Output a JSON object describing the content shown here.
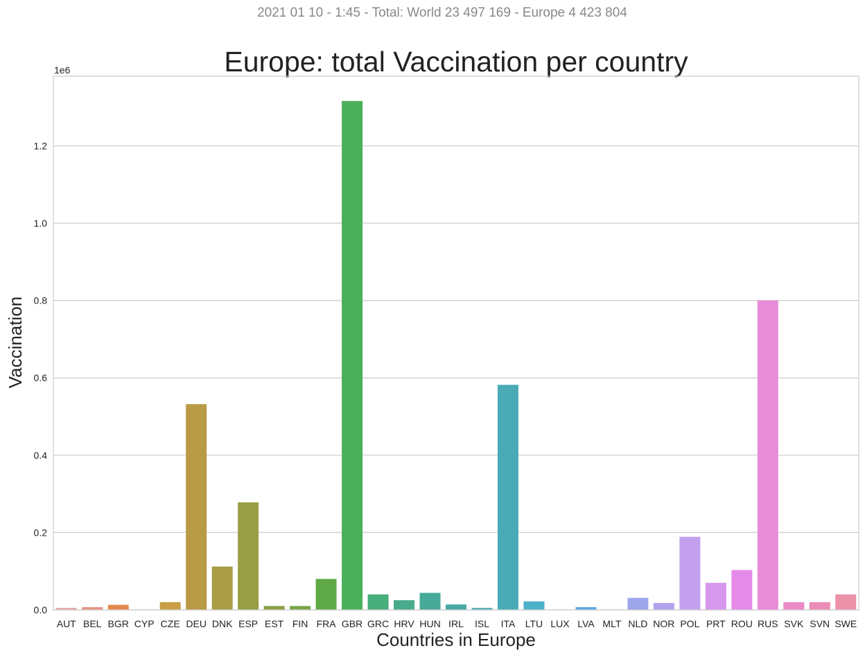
{
  "suptitle": "2021 01 10 - 1:45 - Total: World 23 497 169 - Europe 4 423 804",
  "chart_data": {
    "type": "bar",
    "title": "Europe: total Vaccination per country",
    "xlabel": "Countries in Europe",
    "ylabel": "Vaccination",
    "y_offset_label": "1e6",
    "ylim": [
      0,
      1380000
    ],
    "yticks": [
      0,
      200000,
      400000,
      600000,
      800000,
      1000000,
      1200000
    ],
    "ytick_labels": [
      "0.0",
      "0.2",
      "0.4",
      "0.6",
      "0.8",
      "1.0",
      "1.2"
    ],
    "grid": "horizontal",
    "categories": [
      "AUT",
      "BEL",
      "BGR",
      "CYP",
      "CZE",
      "DEU",
      "DNK",
      "ESP",
      "EST",
      "FIN",
      "FRA",
      "GBR",
      "GRC",
      "HRV",
      "HUN",
      "IRL",
      "ISL",
      "ITA",
      "LTU",
      "LUX",
      "LVA",
      "MLT",
      "NLD",
      "NOR",
      "POL",
      "PRT",
      "ROU",
      "RUS",
      "SVK",
      "SVN",
      "SWE"
    ],
    "values": [
      5000,
      7000,
      13000,
      1000,
      20000,
      532000,
      112000,
      278000,
      10000,
      10000,
      80000,
      1316000,
      40000,
      25000,
      44000,
      14000,
      5000,
      582000,
      22000,
      1000,
      7000,
      1000,
      31000,
      18000,
      189000,
      70000,
      103000,
      800000,
      20000,
      20000,
      40000
    ],
    "colors": [
      "#e4a3a4",
      "#e8927f",
      "#e6874a",
      "#d39a47",
      "#c99e46",
      "#b99a45",
      "#a89d44",
      "#989e43",
      "#8aa143",
      "#77a548",
      "#5fa847",
      "#4caf5a",
      "#46ad7b",
      "#48ab8c",
      "#47aa98",
      "#48aaa6",
      "#4aaab3",
      "#4aabb6",
      "#4cb0c7",
      "#49a8d6",
      "#5aa6e4",
      "#7ea3ec",
      "#9da6eb",
      "#b3a3ee",
      "#c3a0ee",
      "#d698ec",
      "#e48be8",
      "#e88cd7",
      "#ea8bc5",
      "#ea8cb6",
      "#ec92a8"
    ]
  }
}
